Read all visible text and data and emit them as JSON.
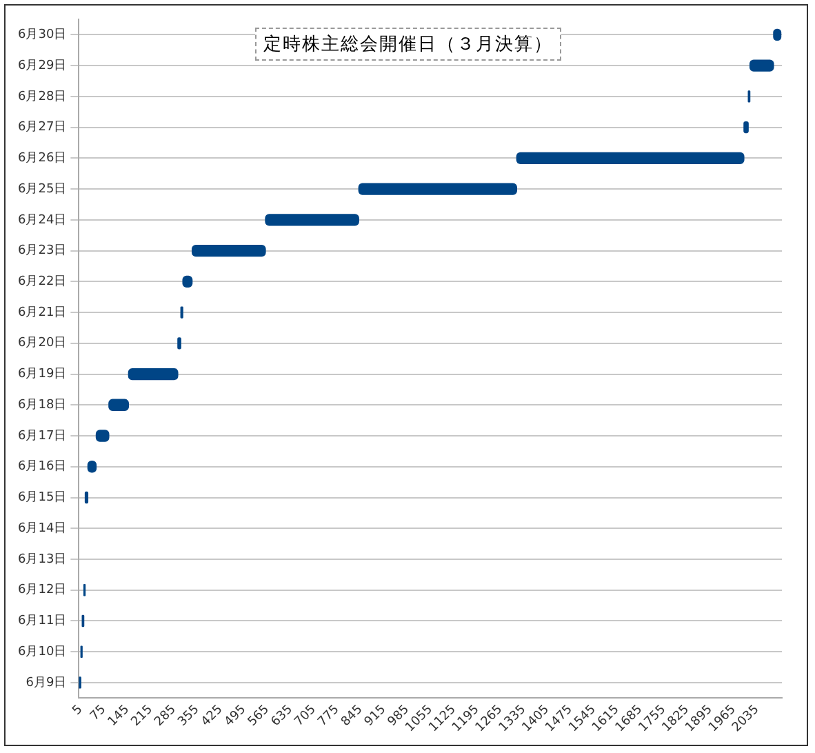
{
  "chart_data": {
    "type": "bar",
    "orientation": "horizontal",
    "title": "定時株主総会開催日（３月決算）",
    "categories": [
      "6月30日",
      "6月29日",
      "6月28日",
      "6月27日",
      "6月26日",
      "6月25日",
      "6月24日",
      "6月23日",
      "6月22日",
      "6月21日",
      "6月20日",
      "6月19日",
      "6月18日",
      "6月17日",
      "6月16日",
      "6月15日",
      "6月14日",
      "6月13日",
      "6月12日",
      "6月11日",
      "6月10日",
      "6月9日"
    ],
    "base": [
      2085,
      2014,
      2009,
      1996,
      1314,
      840,
      560,
      340,
      312,
      306,
      297,
      149,
      90,
      52,
      27,
      19,
      null,
      null,
      15,
      10,
      6,
      0
    ],
    "values": [
      22,
      71,
      5,
      13,
      682,
      474,
      280,
      220,
      28,
      6,
      9,
      148,
      59,
      38,
      25,
      8,
      null,
      null,
      4,
      5,
      4,
      6
    ],
    "color": "#004586",
    "xlim": [
      0,
      2110
    ],
    "xticks": [
      5,
      75,
      145,
      215,
      285,
      355,
      425,
      495,
      565,
      635,
      705,
      775,
      845,
      915,
      985,
      1055,
      1125,
      1195,
      1265,
      1335,
      1405,
      1475,
      1545,
      1615,
      1685,
      1755,
      1825,
      1895,
      1965,
      2035
    ],
    "grid": "y",
    "legend": false
  }
}
